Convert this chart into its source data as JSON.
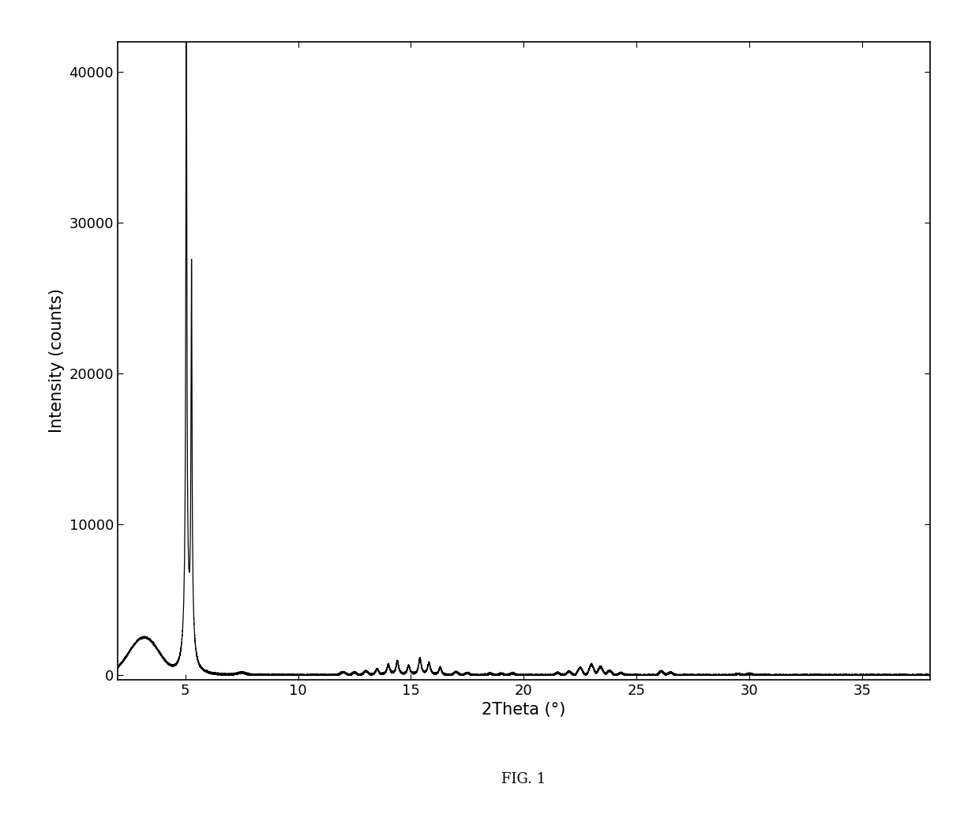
{
  "xlabel": "2Theta (°)",
  "ylabel": "Intensity (counts)",
  "title": "FIG. 1",
  "xlim": [
    2,
    38
  ],
  "ylim": [
    -300,
    42000
  ],
  "yticks": [
    0,
    10000,
    20000,
    30000,
    40000
  ],
  "xticks": [
    5,
    10,
    15,
    20,
    25,
    30,
    35
  ],
  "line_color": "#000000",
  "background_color": "#ffffff",
  "line_width": 0.9,
  "xlabel_fontsize": 15,
  "ylabel_fontsize": 15,
  "tick_fontsize": 13,
  "title_fontsize": 13,
  "fig_width": 12.4,
  "fig_height": 10.5,
  "dpi": 100
}
